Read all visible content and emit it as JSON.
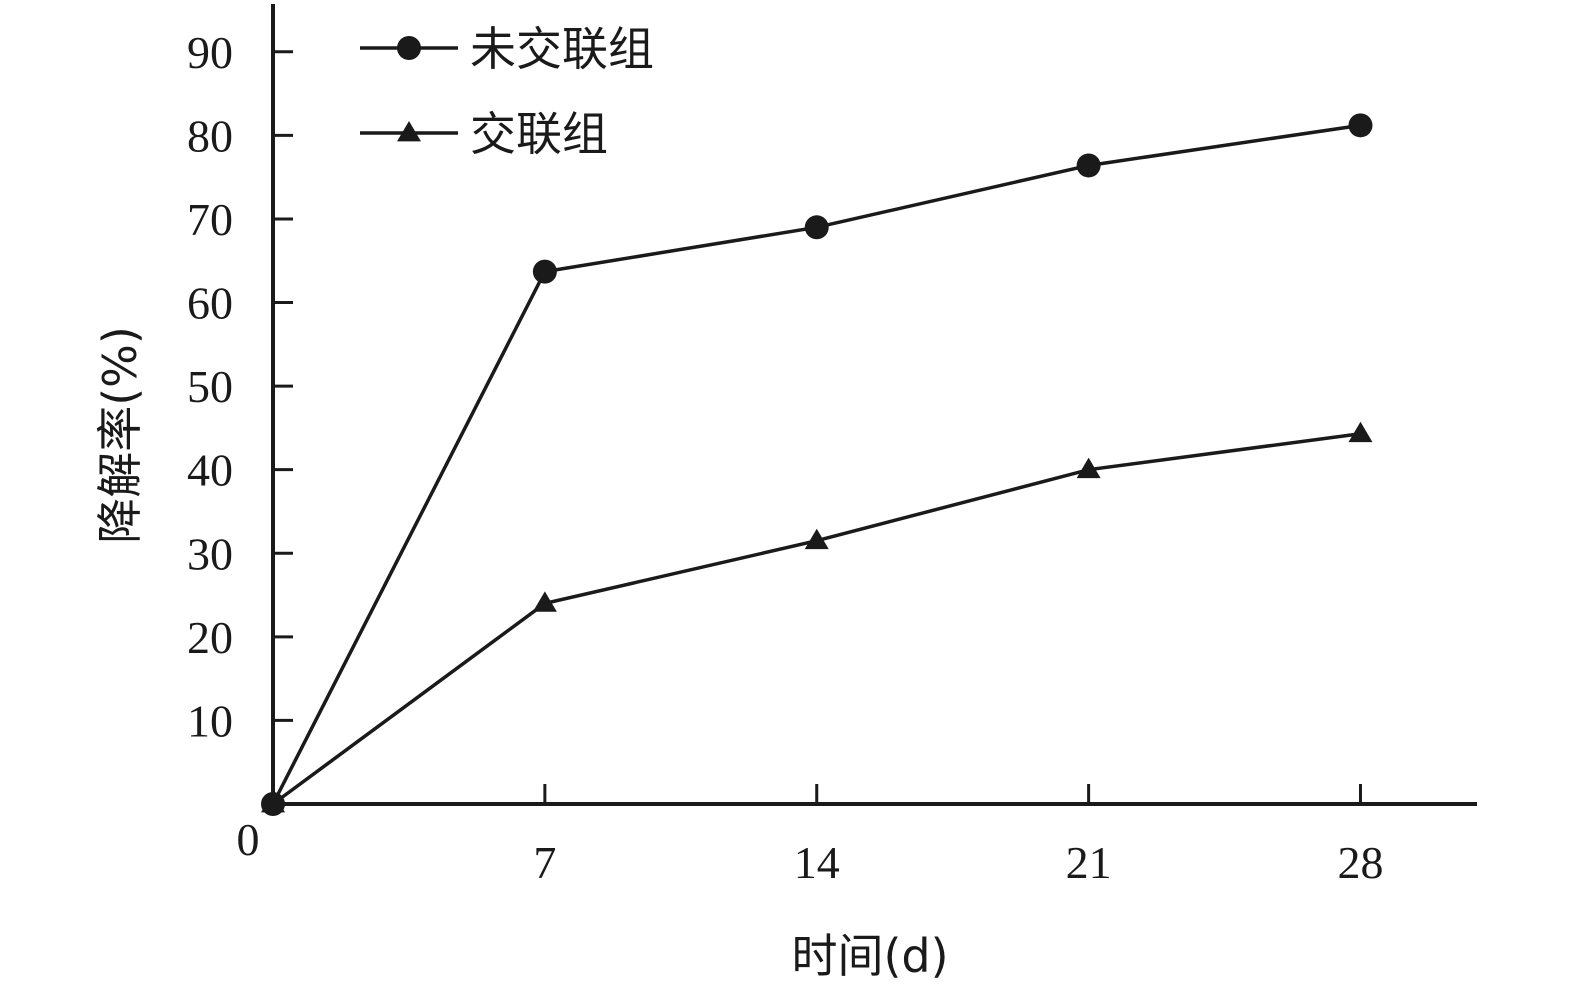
{
  "chart_data": {
    "type": "line",
    "x": [
      0,
      7,
      14,
      21,
      28
    ],
    "x_tick_labels": [
      "0",
      "7",
      "14",
      "21",
      "28"
    ],
    "xlim": [
      0,
      31
    ],
    "ylim": [
      0,
      95
    ],
    "y_tick_labels": [
      "10",
      "20",
      "30",
      "40",
      "50",
      "60",
      "70",
      "80",
      "90"
    ],
    "y_ticks": [
      10,
      20,
      30,
      40,
      50,
      60,
      70,
      80,
      90
    ],
    "xlabel": "时间(d)",
    "ylabel": "降解率(%)",
    "title": "",
    "grid": false,
    "legend_position": "top-left",
    "series": [
      {
        "name": "未交联组",
        "marker": "circle",
        "values": [
          0,
          63.7,
          69,
          76.4,
          81.2
        ]
      },
      {
        "name": "交联组",
        "marker": "triangle",
        "values": [
          0,
          24,
          31.5,
          40,
          44.3
        ]
      }
    ],
    "colors": {
      "line": "#1a1a1a",
      "marker": "#1a1a1a",
      "axis": "#1a1a1a"
    }
  }
}
